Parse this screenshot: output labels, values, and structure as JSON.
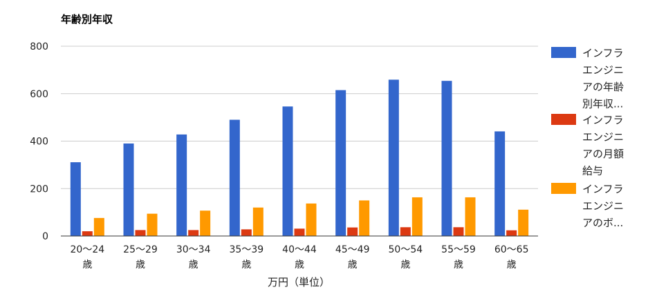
{
  "chart_data": {
    "type": "bar",
    "title": "年齢別年収",
    "xlabel": "万円（単位）",
    "ylabel": "",
    "ylim": [
      0,
      800
    ],
    "yticks": [
      0,
      200,
      400,
      600,
      800
    ],
    "grid": true,
    "legend_position": "right",
    "categories": [
      [
        "20～24",
        "歳"
      ],
      [
        "25～29",
        "歳"
      ],
      [
        "30～34",
        "歳"
      ],
      [
        "35～39",
        "歳"
      ],
      [
        "40～44",
        "歳"
      ],
      [
        "45～49",
        "歳"
      ],
      [
        "50～54",
        "歳"
      ],
      [
        "55～59",
        "歳"
      ],
      [
        "60～65",
        "歳"
      ]
    ],
    "series": [
      {
        "name": "インフラエンジニアの年齢別年収…",
        "legend_lines": [
          "インフラ",
          "エンジニ",
          "アの年齢",
          "別年収..."
        ],
        "color": "#3366cc",
        "values": [
          311,
          390,
          428,
          490,
          546,
          615,
          659,
          654,
          441
        ]
      },
      {
        "name": "インフラエンジニアの月額給与",
        "legend_lines": [
          "インフラ",
          "エンジニ",
          "アの月額",
          "給与"
        ],
        "color": "#dc3912",
        "values": [
          20,
          25,
          25,
          28,
          31,
          36,
          37,
          37,
          24
        ]
      },
      {
        "name": "インフラエンジニアのボ…",
        "legend_lines": [
          "インフラ",
          "エンジニ",
          "アのボ..."
        ],
        "color": "#ff9900",
        "values": [
          76,
          94,
          107,
          120,
          137,
          150,
          163,
          163,
          111
        ]
      }
    ]
  }
}
